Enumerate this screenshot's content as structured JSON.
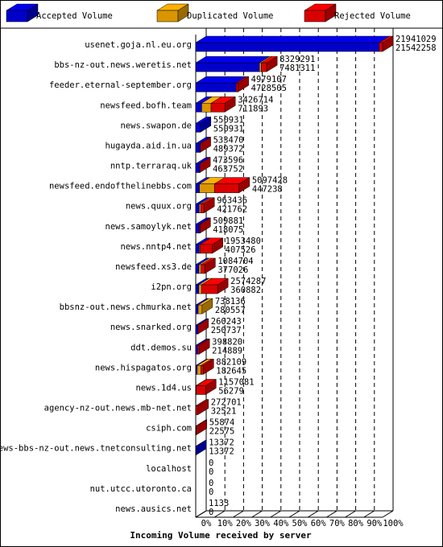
{
  "chart_data": {
    "type": "bar3d",
    "x_label": "Incoming Volume received by server",
    "categories": [
      "usenet.goja.nl.eu.org",
      "bbs-nz-out.news.weretis.net",
      "feeder.eternal-september.org",
      "newsfeed.bofh.team",
      "news.swapon.de",
      "hugayda.aid.in.ua",
      "nntp.terraraq.uk",
      "newsfeed.endofthelinebbs.com",
      "news.quux.org",
      "news.samoylyk.net",
      "news.nntp4.net",
      "newsfeed.xs3.de",
      "i2pn.org",
      "bbsnz-out.news.chmurka.net",
      "news.snarked.org",
      "ddt.demos.su",
      "news.hispagatos.org",
      "news.1d4.us",
      "agency-nz-out.news.mb-net.net",
      "csiph.com",
      "news-bbs-nz-out.news.tnetconsulting.net",
      "localhost",
      "nut.utcc.utoronto.ca",
      "news.ausics.net"
    ],
    "volume_total": [
      21941029,
      8329291,
      4979107,
      3426714,
      550931,
      533470,
      473596,
      5097428,
      963436,
      509881,
      1953480,
      1084704,
      2574287,
      738136,
      260243,
      398820,
      882109,
      1157081,
      272701,
      55874,
      13372,
      0,
      0,
      1133
    ],
    "volume_accepted": [
      21542258,
      7481311,
      4728505,
      711893,
      550931,
      489372,
      463752,
      447238,
      421762,
      418075,
      407526,
      377026,
      360882,
      280557,
      250737,
      214889,
      182645,
      56279,
      32521,
      22575,
      13372,
      0,
      0,
      0
    ],
    "series": [
      {
        "name": "Accepted Volume",
        "color": "#0000ee",
        "values": [
          98.2,
          34.1,
          21.6,
          3.2,
          2.5,
          2.2,
          2.1,
          2.0,
          1.9,
          1.9,
          1.9,
          1.7,
          1.6,
          1.3,
          1.1,
          1.0,
          0.8,
          0.3,
          0.1,
          0.1,
          0.1,
          0,
          0,
          0
        ]
      },
      {
        "name": "Duplicated Volume",
        "color": "#ffb000",
        "values": [
          0,
          1.0,
          0,
          5.0,
          0,
          0,
          0,
          8.0,
          0.8,
          0,
          0.5,
          1.2,
          1.5,
          2.1,
          0,
          0,
          2.0,
          0,
          0,
          0,
          0,
          0,
          0,
          0
        ]
      },
      {
        "name": "Rejected Volume",
        "color": "#ff0000",
        "values": [
          1.8,
          2.9,
          1.1,
          7.4,
          0,
          0.2,
          0.1,
          13.2,
          1.7,
          0.4,
          6.5,
          2.0,
          8.6,
          0,
          0.1,
          0.8,
          1.2,
          5.0,
          1.1,
          0.2,
          0,
          0,
          0,
          0
        ]
      }
    ],
    "xlim": [
      0,
      100
    ],
    "xticks": [
      {
        "value": 0,
        "label": "0%"
      },
      {
        "value": 10,
        "label": "10%"
      },
      {
        "value": 20,
        "label": "20%"
      },
      {
        "value": 30,
        "label": "30%"
      },
      {
        "value": 40,
        "label": "40%"
      },
      {
        "value": 50,
        "label": "50%"
      },
      {
        "value": 60,
        "label": "60%"
      },
      {
        "value": 70,
        "label": "70%"
      },
      {
        "value": 80,
        "label": "80%"
      },
      {
        "value": 90,
        "label": "90%"
      },
      {
        "value": 100,
        "label": "100%"
      }
    ],
    "grid": true
  }
}
